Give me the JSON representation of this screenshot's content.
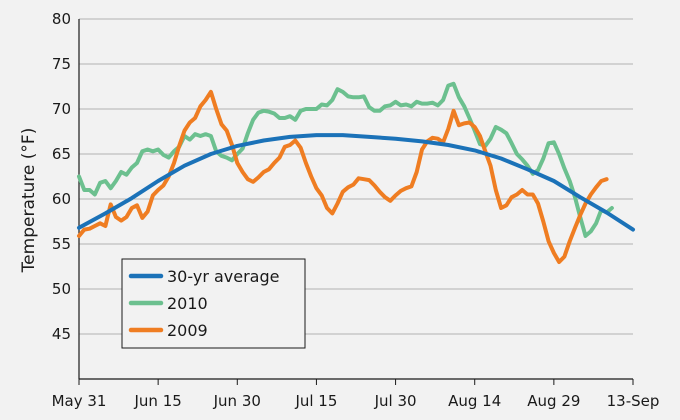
{
  "chart_data": {
    "type": "line",
    "title": "",
    "xlabel": "",
    "ylabel": "Temperature (°F)",
    "ylim": [
      40,
      80
    ],
    "yticks": [
      45,
      50,
      55,
      60,
      65,
      70,
      75,
      80
    ],
    "xlim": [
      0,
      105
    ],
    "x_ticks": [
      {
        "day": 0,
        "label": "May 31"
      },
      {
        "day": 15,
        "label": "Jun 15"
      },
      {
        "day": 30,
        "label": "Jun 30"
      },
      {
        "day": 45,
        "label": "Jul 15"
      },
      {
        "day": 60,
        "label": "Jul 30"
      },
      {
        "day": 75,
        "label": "Aug 14"
      },
      {
        "day": 90,
        "label": "Aug 29"
      },
      {
        "day": 105,
        "label": "13-Sep"
      }
    ],
    "grid": "horizontal",
    "legend_position": "lower-left",
    "series": [
      {
        "name": "30-yr average",
        "color": "#1b72b8",
        "points": [
          [
            0,
            56.8
          ],
          [
            5,
            58.4
          ],
          [
            10,
            60.1
          ],
          [
            15,
            62.0
          ],
          [
            20,
            63.7
          ],
          [
            25,
            65.0
          ],
          [
            30,
            65.9
          ],
          [
            35,
            66.5
          ],
          [
            40,
            66.9
          ],
          [
            45,
            67.1
          ],
          [
            50,
            67.1
          ],
          [
            55,
            66.9
          ],
          [
            60,
            66.7
          ],
          [
            65,
            66.4
          ],
          [
            70,
            66.0
          ],
          [
            75,
            65.4
          ],
          [
            80,
            64.5
          ],
          [
            85,
            63.3
          ],
          [
            90,
            62.0
          ],
          [
            95,
            60.2
          ],
          [
            100,
            58.5
          ],
          [
            105,
            56.6
          ]
        ]
      },
      {
        "name": "2010",
        "color": "#6cc08f",
        "points": [
          [
            0,
            62.5
          ],
          [
            1,
            61.0
          ],
          [
            2,
            61.0
          ],
          [
            3,
            60.5
          ],
          [
            4,
            61.8
          ],
          [
            5,
            62.0
          ],
          [
            6,
            61.2
          ],
          [
            7,
            62.0
          ],
          [
            8,
            63.0
          ],
          [
            9,
            62.7
          ],
          [
            10,
            63.5
          ],
          [
            11,
            64.0
          ],
          [
            12,
            65.3
          ],
          [
            13,
            65.5
          ],
          [
            14,
            65.3
          ],
          [
            15,
            65.5
          ],
          [
            16,
            64.9
          ],
          [
            17,
            64.6
          ],
          [
            18,
            65.3
          ],
          [
            19,
            65.8
          ],
          [
            20,
            67.0
          ],
          [
            21,
            66.6
          ],
          [
            22,
            67.2
          ],
          [
            23,
            67.0
          ],
          [
            24,
            67.2
          ],
          [
            25,
            67.0
          ],
          [
            26,
            65.3
          ],
          [
            27,
            64.8
          ],
          [
            28,
            64.6
          ],
          [
            29,
            64.3
          ],
          [
            30,
            65.0
          ],
          [
            31,
            65.6
          ],
          [
            32,
            67.3
          ],
          [
            33,
            68.8
          ],
          [
            34,
            69.6
          ],
          [
            35,
            69.8
          ],
          [
            36,
            69.7
          ],
          [
            37,
            69.5
          ],
          [
            38,
            69.0
          ],
          [
            39,
            69.0
          ],
          [
            40,
            69.2
          ],
          [
            41,
            68.8
          ],
          [
            42,
            69.8
          ],
          [
            43,
            70.0
          ],
          [
            44,
            70.0
          ],
          [
            45,
            70.0
          ],
          [
            46,
            70.5
          ],
          [
            47,
            70.4
          ],
          [
            48,
            71.0
          ],
          [
            49,
            72.2
          ],
          [
            50,
            71.9
          ],
          [
            51,
            71.4
          ],
          [
            52,
            71.3
          ],
          [
            53,
            71.3
          ],
          [
            54,
            71.4
          ],
          [
            55,
            70.2
          ],
          [
            56,
            69.8
          ],
          [
            57,
            69.8
          ],
          [
            58,
            70.3
          ],
          [
            59,
            70.4
          ],
          [
            60,
            70.8
          ],
          [
            61,
            70.4
          ],
          [
            62,
            70.5
          ],
          [
            63,
            70.3
          ],
          [
            64,
            70.8
          ],
          [
            65,
            70.6
          ],
          [
            66,
            70.6
          ],
          [
            67,
            70.7
          ],
          [
            68,
            70.4
          ],
          [
            69,
            71.0
          ],
          [
            70,
            72.6
          ],
          [
            71,
            72.8
          ],
          [
            72,
            71.3
          ],
          [
            73,
            70.3
          ],
          [
            74,
            69.0
          ],
          [
            75,
            67.6
          ],
          [
            76,
            66.1
          ],
          [
            77,
            65.9
          ],
          [
            78,
            66.7
          ],
          [
            79,
            68.0
          ],
          [
            80,
            67.7
          ],
          [
            81,
            67.3
          ],
          [
            82,
            66.2
          ],
          [
            83,
            65.0
          ],
          [
            84,
            64.4
          ],
          [
            85,
            63.7
          ],
          [
            86,
            62.8
          ],
          [
            87,
            63.2
          ],
          [
            88,
            64.5
          ],
          [
            89,
            66.2
          ],
          [
            90,
            66.3
          ],
          [
            91,
            65.0
          ],
          [
            92,
            63.4
          ],
          [
            93,
            62.0
          ],
          [
            94,
            60.2
          ],
          [
            95,
            58.0
          ],
          [
            96,
            55.9
          ],
          [
            97,
            56.4
          ],
          [
            98,
            57.3
          ],
          [
            99,
            58.8
          ],
          [
            100,
            58.5
          ],
          [
            101,
            59.0
          ]
        ]
      },
      {
        "name": "2009",
        "color": "#ef7d22",
        "points": [
          [
            0,
            55.9
          ],
          [
            1,
            56.6
          ],
          [
            2,
            56.7
          ],
          [
            3,
            57.0
          ],
          [
            4,
            57.3
          ],
          [
            5,
            57.0
          ],
          [
            6,
            59.4
          ],
          [
            7,
            58.0
          ],
          [
            8,
            57.6
          ],
          [
            9,
            58.0
          ],
          [
            10,
            59.0
          ],
          [
            11,
            59.3
          ],
          [
            12,
            57.9
          ],
          [
            13,
            58.6
          ],
          [
            14,
            60.4
          ],
          [
            15,
            61.0
          ],
          [
            16,
            61.5
          ],
          [
            17,
            62.5
          ],
          [
            18,
            64.0
          ],
          [
            19,
            65.9
          ],
          [
            20,
            67.6
          ],
          [
            21,
            68.5
          ],
          [
            22,
            69.0
          ],
          [
            23,
            70.3
          ],
          [
            24,
            71.0
          ],
          [
            25,
            71.9
          ],
          [
            26,
            70.0
          ],
          [
            27,
            68.3
          ],
          [
            28,
            67.6
          ],
          [
            29,
            66.0
          ],
          [
            30,
            64.0
          ],
          [
            31,
            63.0
          ],
          [
            32,
            62.2
          ],
          [
            33,
            61.9
          ],
          [
            34,
            62.4
          ],
          [
            35,
            63.0
          ],
          [
            36,
            63.3
          ],
          [
            37,
            64.0
          ],
          [
            38,
            64.6
          ],
          [
            39,
            65.8
          ],
          [
            40,
            66.0
          ],
          [
            41,
            66.5
          ],
          [
            42,
            65.7
          ],
          [
            43,
            64.0
          ],
          [
            44,
            62.5
          ],
          [
            45,
            61.2
          ],
          [
            46,
            60.4
          ],
          [
            47,
            59.0
          ],
          [
            48,
            58.4
          ],
          [
            49,
            59.5
          ],
          [
            50,
            60.8
          ],
          [
            51,
            61.3
          ],
          [
            52,
            61.6
          ],
          [
            53,
            62.3
          ],
          [
            54,
            62.2
          ],
          [
            55,
            62.1
          ],
          [
            56,
            61.5
          ],
          [
            57,
            60.8
          ],
          [
            58,
            60.2
          ],
          [
            59,
            59.8
          ],
          [
            60,
            60.4
          ],
          [
            61,
            60.9
          ],
          [
            62,
            61.2
          ],
          [
            63,
            61.4
          ],
          [
            64,
            63.0
          ],
          [
            65,
            65.5
          ],
          [
            66,
            66.4
          ],
          [
            67,
            66.8
          ],
          [
            68,
            66.7
          ],
          [
            69,
            66.3
          ],
          [
            70,
            67.8
          ],
          [
            71,
            69.8
          ],
          [
            72,
            68.2
          ],
          [
            73,
            68.4
          ],
          [
            74,
            68.5
          ],
          [
            75,
            68.0
          ],
          [
            76,
            67.0
          ],
          [
            77,
            65.3
          ],
          [
            78,
            63.7
          ],
          [
            79,
            61.0
          ],
          [
            80,
            59.0
          ],
          [
            81,
            59.3
          ],
          [
            82,
            60.2
          ],
          [
            83,
            60.5
          ],
          [
            84,
            61.0
          ],
          [
            85,
            60.5
          ],
          [
            86,
            60.5
          ],
          [
            87,
            59.5
          ],
          [
            88,
            57.5
          ],
          [
            89,
            55.3
          ],
          [
            90,
            54.0
          ],
          [
            91,
            53.0
          ],
          [
            92,
            53.6
          ],
          [
            93,
            55.3
          ],
          [
            94,
            56.8
          ],
          [
            95,
            58.2
          ],
          [
            96,
            59.5
          ],
          [
            97,
            60.5
          ],
          [
            98,
            61.3
          ],
          [
            99,
            62.0
          ],
          [
            100,
            62.2
          ]
        ]
      }
    ]
  }
}
